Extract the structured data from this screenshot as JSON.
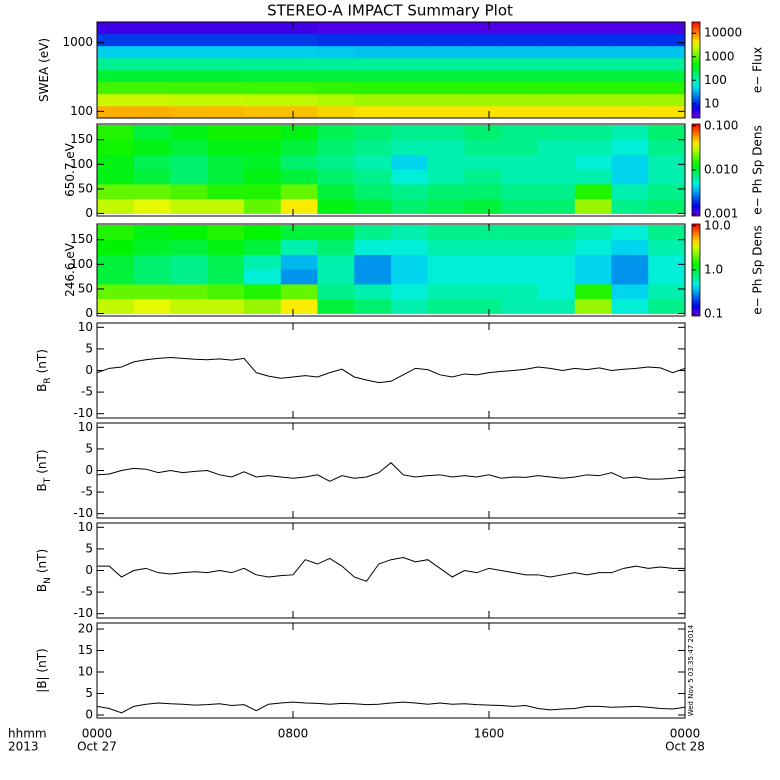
{
  "chart_data": [
    {
      "type": "heatmap",
      "title": "STEREO-A IMPACT Summary Plot",
      "ylabel": "SWEA (eV)",
      "ylog": true,
      "ylim": [
        80,
        2000
      ],
      "yticks": [
        100,
        1000
      ],
      "xlim": [
        0,
        24
      ],
      "xticks": [
        {
          "value": 0,
          "label": "0000"
        },
        {
          "value": 8,
          "label": "0800"
        },
        {
          "value": 16,
          "label": "1600"
        },
        {
          "value": 24,
          "label": "0000"
        }
      ],
      "xbins": [
        0,
        1.5,
        3,
        4.5,
        6,
        7.5,
        9,
        10.5,
        12,
        13.5,
        15,
        16.5,
        18,
        19.5,
        21,
        22.5,
        24
      ],
      "ybins": [
        80,
        120,
        180,
        270,
        400,
        600,
        900,
        1350,
        2000
      ],
      "z": [
        [
          7000,
          7000,
          6500,
          6500,
          6000,
          6000,
          5000,
          4500,
          4500,
          4500,
          4500,
          4500,
          4500,
          4500,
          4500,
          4500
        ],
        [
          2500,
          2500,
          2400,
          2400,
          2300,
          2300,
          2000,
          1800,
          1800,
          1800,
          1800,
          1800,
          1800,
          1800,
          1800,
          1800
        ],
        [
          800,
          800,
          780,
          780,
          760,
          760,
          700,
          650,
          650,
          650,
          650,
          650,
          650,
          650,
          650,
          650
        ],
        [
          300,
          300,
          300,
          300,
          290,
          290,
          280,
          270,
          270,
          270,
          270,
          270,
          270,
          270,
          270,
          270
        ],
        [
          130,
          130,
          130,
          130,
          125,
          125,
          120,
          120,
          120,
          120,
          120,
          120,
          120,
          120,
          120,
          120
        ],
        [
          45,
          45,
          45,
          45,
          44,
          44,
          42,
          40,
          40,
          40,
          40,
          40,
          40,
          40,
          40,
          40
        ],
        [
          12,
          12,
          12,
          12,
          12,
          12,
          11,
          11,
          11,
          11,
          11,
          11,
          11,
          11,
          11,
          11
        ],
        [
          4,
          4,
          4,
          4,
          4,
          4,
          3.5,
          3.5,
          3.5,
          3.5,
          3.5,
          3.5,
          3.5,
          3.5,
          3.5,
          3.5
        ]
      ],
      "clim": [
        2.5,
        30000
      ],
      "clog": true,
      "cticks": [
        10,
        100,
        1000,
        10000
      ],
      "colorbar_label": "e− Flux"
    },
    {
      "type": "heatmap",
      "ylabel": "650.7 eV",
      "ylim": [
        -5,
        182
      ],
      "yticks": [
        0,
        50,
        100,
        150
      ],
      "xlim": [
        0,
        24
      ],
      "xticks": [
        {
          "value": 0,
          "label": "0000"
        },
        {
          "value": 8,
          "label": "0800"
        },
        {
          "value": 16,
          "label": "1600"
        },
        {
          "value": 24,
          "label": "0000"
        }
      ],
      "xbins": [
        0,
        1.5,
        3,
        4.5,
        6,
        7.5,
        9,
        10.5,
        12,
        13.5,
        15,
        16.5,
        18,
        19.5,
        21,
        22.5,
        24
      ],
      "ybins": [
        0,
        30,
        60,
        90,
        120,
        150,
        180
      ],
      "z": [
        [
          0.03,
          0.035,
          0.03,
          0.03,
          0.02,
          0.04,
          0.012,
          0.01,
          0.008,
          0.009,
          0.01,
          0.008,
          0.008,
          0.025,
          0.007,
          0.008
        ],
        [
          0.02,
          0.02,
          0.018,
          0.015,
          0.015,
          0.02,
          0.01,
          0.008,
          0.007,
          0.008,
          0.008,
          0.007,
          0.007,
          0.015,
          0.006,
          0.007
        ],
        [
          0.012,
          0.01,
          0.008,
          0.01,
          0.012,
          0.01,
          0.008,
          0.007,
          0.005,
          0.006,
          0.007,
          0.006,
          0.006,
          0.006,
          0.004,
          0.006
        ],
        [
          0.012,
          0.009,
          0.008,
          0.01,
          0.011,
          0.008,
          0.007,
          0.006,
          0.004,
          0.006,
          0.006,
          0.006,
          0.006,
          0.005,
          0.004,
          0.006
        ],
        [
          0.014,
          0.012,
          0.01,
          0.012,
          0.012,
          0.01,
          0.008,
          0.007,
          0.006,
          0.006,
          0.007,
          0.007,
          0.006,
          0.006,
          0.005,
          0.007
        ],
        [
          0.015,
          0.01,
          0.012,
          0.014,
          0.014,
          0.012,
          0.009,
          0.008,
          0.007,
          0.007,
          0.008,
          0.007,
          0.007,
          0.007,
          0.006,
          0.008
        ]
      ],
      "clim": [
        0.0009,
        0.11
      ],
      "clog": true,
      "cticks": [
        0.001,
        {
          "value": 0.01,
          "label": "0.010"
        },
        {
          "value": 0.1,
          "label": "0.100"
        }
      ],
      "colorbar_label": "e− Ph Sp Dens"
    },
    {
      "type": "heatmap",
      "ylabel": "246.6 eV",
      "ylim": [
        -5,
        182
      ],
      "yticks": [
        0,
        50,
        100,
        150
      ],
      "xlim": [
        0,
        24
      ],
      "xticks": [
        {
          "value": 0,
          "label": "0000"
        },
        {
          "value": 8,
          "label": "0800"
        },
        {
          "value": 16,
          "label": "1600"
        },
        {
          "value": 24,
          "label": "0000"
        }
      ],
      "xbins": [
        0,
        1.5,
        3,
        4.5,
        6,
        7.5,
        9,
        10.5,
        12,
        13.5,
        15,
        16.5,
        18,
        19.5,
        21,
        22.5,
        24
      ],
      "ybins": [
        0,
        30,
        60,
        90,
        120,
        150,
        180
      ],
      "z": [
        [
          3,
          3.5,
          3,
          3,
          2.5,
          4,
          1,
          0.8,
          0.6,
          0.7,
          0.7,
          0.6,
          0.6,
          2.5,
          0.5,
          0.7
        ],
        [
          2,
          2,
          2,
          1.8,
          1.5,
          2,
          0.7,
          0.6,
          0.5,
          0.6,
          0.6,
          0.6,
          0.5,
          1.5,
          0.4,
          0.6
        ],
        [
          1,
          0.8,
          0.7,
          0.9,
          0.5,
          0.3,
          0.6,
          0.3,
          0.4,
          0.5,
          0.5,
          0.5,
          0.5,
          0.4,
          0.3,
          0.5
        ],
        [
          1,
          0.8,
          0.7,
          0.9,
          0.6,
          0.35,
          0.6,
          0.3,
          0.4,
          0.5,
          0.5,
          0.5,
          0.5,
          0.4,
          0.3,
          0.5
        ],
        [
          1.3,
          1.1,
          1,
          1.2,
          1,
          0.6,
          0.8,
          0.5,
          0.5,
          0.6,
          0.6,
          0.6,
          0.6,
          0.5,
          0.4,
          0.6
        ],
        [
          1.5,
          1.2,
          1.3,
          1.5,
          1.3,
          1,
          1,
          0.7,
          0.6,
          0.7,
          0.7,
          0.7,
          0.7,
          0.6,
          0.5,
          0.7
        ]
      ],
      "clim": [
        0.09,
        11
      ],
      "clog": true,
      "cticks": [
        0.1,
        {
          "value": 1,
          "label": "1.0"
        },
        {
          "value": 10,
          "label": "10.0"
        }
      ],
      "colorbar_label": "e− Ph Sp Dens"
    },
    {
      "type": "line",
      "ylabel": "B",
      "ylabel_sub": "R",
      "ylabel_unit": "(nT)",
      "color": "#000000",
      "ylim": [
        -11,
        11
      ],
      "yticks": [
        -10,
        -5,
        0,
        5,
        10
      ],
      "xlim": [
        0,
        24
      ],
      "xticks": [
        {
          "value": 0,
          "label": "0000"
        },
        {
          "value": 8,
          "label": "0800"
        },
        {
          "value": 16,
          "label": "1600"
        },
        {
          "value": 24,
          "label": "0000"
        }
      ],
      "x": [
        0,
        0.5,
        1,
        1.5,
        2,
        2.5,
        3,
        3.5,
        4,
        4.5,
        5,
        5.5,
        6,
        6.5,
        7,
        7.5,
        8,
        8.5,
        9,
        9.5,
        10,
        10.5,
        11,
        11.5,
        12,
        12.5,
        13,
        13.5,
        14,
        14.5,
        15,
        15.5,
        16,
        16.5,
        17,
        17.5,
        18,
        18.5,
        19,
        19.5,
        20,
        20.5,
        21,
        21.5,
        22,
        22.5,
        23,
        23.5,
        24
      ],
      "values": [
        -0.5,
        0.5,
        0.8,
        2,
        2.5,
        2.8,
        3,
        2.8,
        2.6,
        2.5,
        2.7,
        2.4,
        2.8,
        -0.5,
        -1.3,
        -1.8,
        -1.5,
        -1.2,
        -1.5,
        -0.5,
        0.3,
        -1.5,
        -2.2,
        -2.8,
        -2.5,
        -1,
        0.5,
        0.2,
        -1,
        -1.5,
        -0.8,
        -1,
        -0.5,
        -0.2,
        0,
        0.3,
        0.8,
        0.5,
        0,
        0.5,
        0.2,
        0.6,
        0,
        0.3,
        0.5,
        0.8,
        0.6,
        -0.5,
        0.5
      ]
    },
    {
      "type": "line",
      "ylabel": "B",
      "ylabel_sub": "T",
      "ylabel_unit": "(nT)",
      "color": "#000000",
      "ylim": [
        -11,
        11
      ],
      "yticks": [
        -10,
        -5,
        0,
        5,
        10
      ],
      "xlim": [
        0,
        24
      ],
      "xticks": [
        {
          "value": 0,
          "label": "0000"
        },
        {
          "value": 8,
          "label": "0800"
        },
        {
          "value": 16,
          "label": "1600"
        },
        {
          "value": 24,
          "label": "0000"
        }
      ],
      "x": [
        0,
        0.5,
        1,
        1.5,
        2,
        2.5,
        3,
        3.5,
        4,
        4.5,
        5,
        5.5,
        6,
        6.5,
        7,
        7.5,
        8,
        8.5,
        9,
        9.5,
        10,
        10.5,
        11,
        11.5,
        12,
        12.5,
        13,
        13.5,
        14,
        14.5,
        15,
        15.5,
        16,
        16.5,
        17,
        17.5,
        18,
        18.5,
        19,
        19.5,
        20,
        20.5,
        21,
        21.5,
        22,
        22.5,
        23,
        23.5,
        24
      ],
      "values": [
        -1,
        -0.8,
        0,
        0.5,
        0.3,
        -0.5,
        0,
        -0.5,
        -0.2,
        0,
        -1,
        -1.5,
        -0.3,
        -1.5,
        -1.2,
        -1.5,
        -1.8,
        -1.5,
        -1,
        -2.5,
        -1.2,
        -1.8,
        -1.5,
        -0.5,
        1.8,
        -1,
        -1.5,
        -1.2,
        -1,
        -1.5,
        -1.2,
        -1.5,
        -1,
        -1.8,
        -1.5,
        -1.6,
        -1.2,
        -1.5,
        -1.8,
        -1.5,
        -1,
        -1.2,
        -0.5,
        -1.8,
        -1.5,
        -2,
        -2,
        -1.8,
        -1.5
      ]
    },
    {
      "type": "line",
      "ylabel": "B",
      "ylabel_sub": "N",
      "ylabel_unit": "(nT)",
      "color": "#000000",
      "ylim": [
        -11,
        11
      ],
      "yticks": [
        -10,
        -5,
        0,
        5,
        10
      ],
      "xlim": [
        0,
        24
      ],
      "xticks": [
        {
          "value": 0,
          "label": "0000"
        },
        {
          "value": 8,
          "label": "0800"
        },
        {
          "value": 16,
          "label": "1600"
        },
        {
          "value": 24,
          "label": "0000"
        }
      ],
      "x": [
        0,
        0.5,
        1,
        1.5,
        2,
        2.5,
        3,
        3.5,
        4,
        4.5,
        5,
        5.5,
        6,
        6.5,
        7,
        7.5,
        8,
        8.5,
        9,
        9.5,
        10,
        10.5,
        11,
        11.5,
        12,
        12.5,
        13,
        13.5,
        14,
        14.5,
        15,
        15.5,
        16,
        16.5,
        17,
        17.5,
        18,
        18.5,
        19,
        19.5,
        20,
        20.5,
        21,
        21.5,
        22,
        22.5,
        23,
        23.5,
        24
      ],
      "values": [
        1,
        1,
        -1.5,
        0,
        0.5,
        -0.5,
        -0.8,
        -0.5,
        -0.3,
        -0.5,
        0,
        -0.5,
        0.5,
        -1,
        -1.5,
        -1.2,
        -1,
        2.5,
        1.5,
        2.8,
        1,
        -1.5,
        -2.5,
        1.5,
        2.5,
        3,
        2,
        2.5,
        0.5,
        -1.5,
        0,
        -0.5,
        0.5,
        0,
        -0.5,
        -1,
        -1,
        -1.5,
        -1,
        -0.5,
        -1,
        -0.5,
        -0.5,
        0.5,
        1,
        0.5,
        0.8,
        0.5,
        0.5
      ]
    },
    {
      "type": "line",
      "ylabel": "|B| (nT)",
      "color": "#000000",
      "ylim": [
        -0.7,
        21.4
      ],
      "yticks": [
        0,
        5,
        10,
        15,
        20
      ],
      "xlim": [
        0,
        24
      ],
      "xticks": [
        {
          "value": 0,
          "label": "0000"
        },
        {
          "value": 8,
          "label": "0800"
        },
        {
          "value": 16,
          "label": "1600"
        },
        {
          "value": 24,
          "label": "0000"
        }
      ],
      "x": [
        0,
        0.5,
        1,
        1.5,
        2,
        2.5,
        3,
        3.5,
        4,
        4.5,
        5,
        5.5,
        6,
        6.5,
        7,
        7.5,
        8,
        8.5,
        9,
        9.5,
        10,
        10.5,
        11,
        11.5,
        12,
        12.5,
        13,
        13.5,
        14,
        14.5,
        15,
        15.5,
        16,
        16.5,
        17,
        17.5,
        18,
        18.5,
        19,
        19.5,
        20,
        20.5,
        21,
        21.5,
        22,
        22.5,
        23,
        23.5,
        24
      ],
      "values": [
        2,
        1.5,
        0.5,
        2,
        2.5,
        2.8,
        2.6,
        2.5,
        2.3,
        2.4,
        2.6,
        2.2,
        2.4,
        1,
        2.5,
        2.8,
        3,
        2.8,
        2.7,
        2.5,
        2.7,
        2.6,
        2.4,
        2.5,
        2.8,
        3,
        2.8,
        2.5,
        2.8,
        2.5,
        2.6,
        2.4,
        2.3,
        2.2,
        2,
        2.2,
        1.5,
        1.2,
        1.4,
        1.5,
        2,
        2,
        1.8,
        1.9,
        2,
        1.8,
        1.5,
        1.4,
        1.8
      ],
      "x_axis_lines": [
        "hhmm",
        "2013"
      ],
      "date_labels": [
        "Oct 27",
        "Oct 28"
      ],
      "timestamp": "Wed Nov  5 03:35:47 2014"
    }
  ]
}
